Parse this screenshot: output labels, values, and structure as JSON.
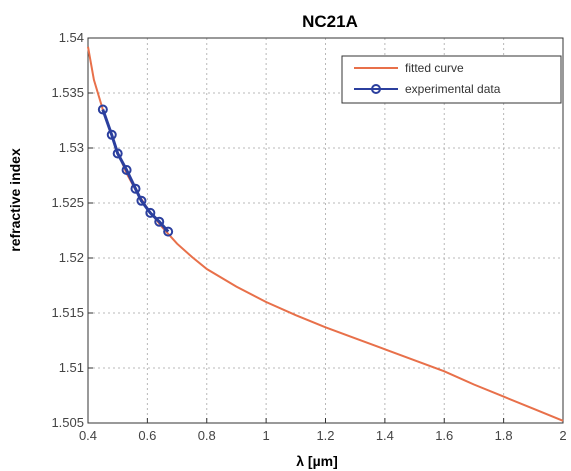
{
  "chart_data": {
    "type": "line",
    "title": "NC21A",
    "xlabel": "λ [µm]",
    "ylabel": "refractive index",
    "xlim": [
      0.4,
      2.0
    ],
    "ylim": [
      1.505,
      1.54
    ],
    "xticks": [
      0.4,
      0.6,
      0.8,
      1.0,
      1.2,
      1.4,
      1.6,
      1.8,
      2.0
    ],
    "xtick_labels": [
      "0.4",
      "0.6",
      "0.8",
      "1",
      "1.2",
      "1.4",
      "1.6",
      "1.8",
      "2"
    ],
    "yticks": [
      1.505,
      1.51,
      1.515,
      1.52,
      1.525,
      1.53,
      1.535,
      1.54
    ],
    "ytick_labels": [
      "1.505",
      "1.51",
      "1.515",
      "1.52",
      "1.525",
      "1.53",
      "1.535",
      "1.54"
    ],
    "grid": true,
    "legend_position": "top-right",
    "series": [
      {
        "name": "fitted curve",
        "color": "#e8704a",
        "x": [
          0.4,
          0.42,
          0.45,
          0.48,
          0.5,
          0.53,
          0.56,
          0.6,
          0.65,
          0.7,
          0.75,
          0.8,
          0.9,
          1.0,
          1.1,
          1.2,
          1.3,
          1.4,
          1.5,
          1.6,
          1.7,
          1.8,
          1.9,
          2.0
        ],
        "values": [
          1.5392,
          1.5362,
          1.5335,
          1.5312,
          1.5296,
          1.5277,
          1.5262,
          1.5245,
          1.5228,
          1.5213,
          1.5201,
          1.519,
          1.5174,
          1.516,
          1.5148,
          1.5137,
          1.5127,
          1.5117,
          1.5107,
          1.5097,
          1.5085,
          1.5074,
          1.5063,
          1.5052
        ]
      },
      {
        "name": "experimental data",
        "color": "#2b3f9e",
        "x": [
          0.45,
          0.48,
          0.5,
          0.53,
          0.56,
          0.58,
          0.61,
          0.64,
          0.67
        ],
        "values": [
          1.5335,
          1.5312,
          1.5295,
          1.528,
          1.5263,
          1.5252,
          1.5241,
          1.5233,
          1.5224
        ]
      }
    ]
  }
}
